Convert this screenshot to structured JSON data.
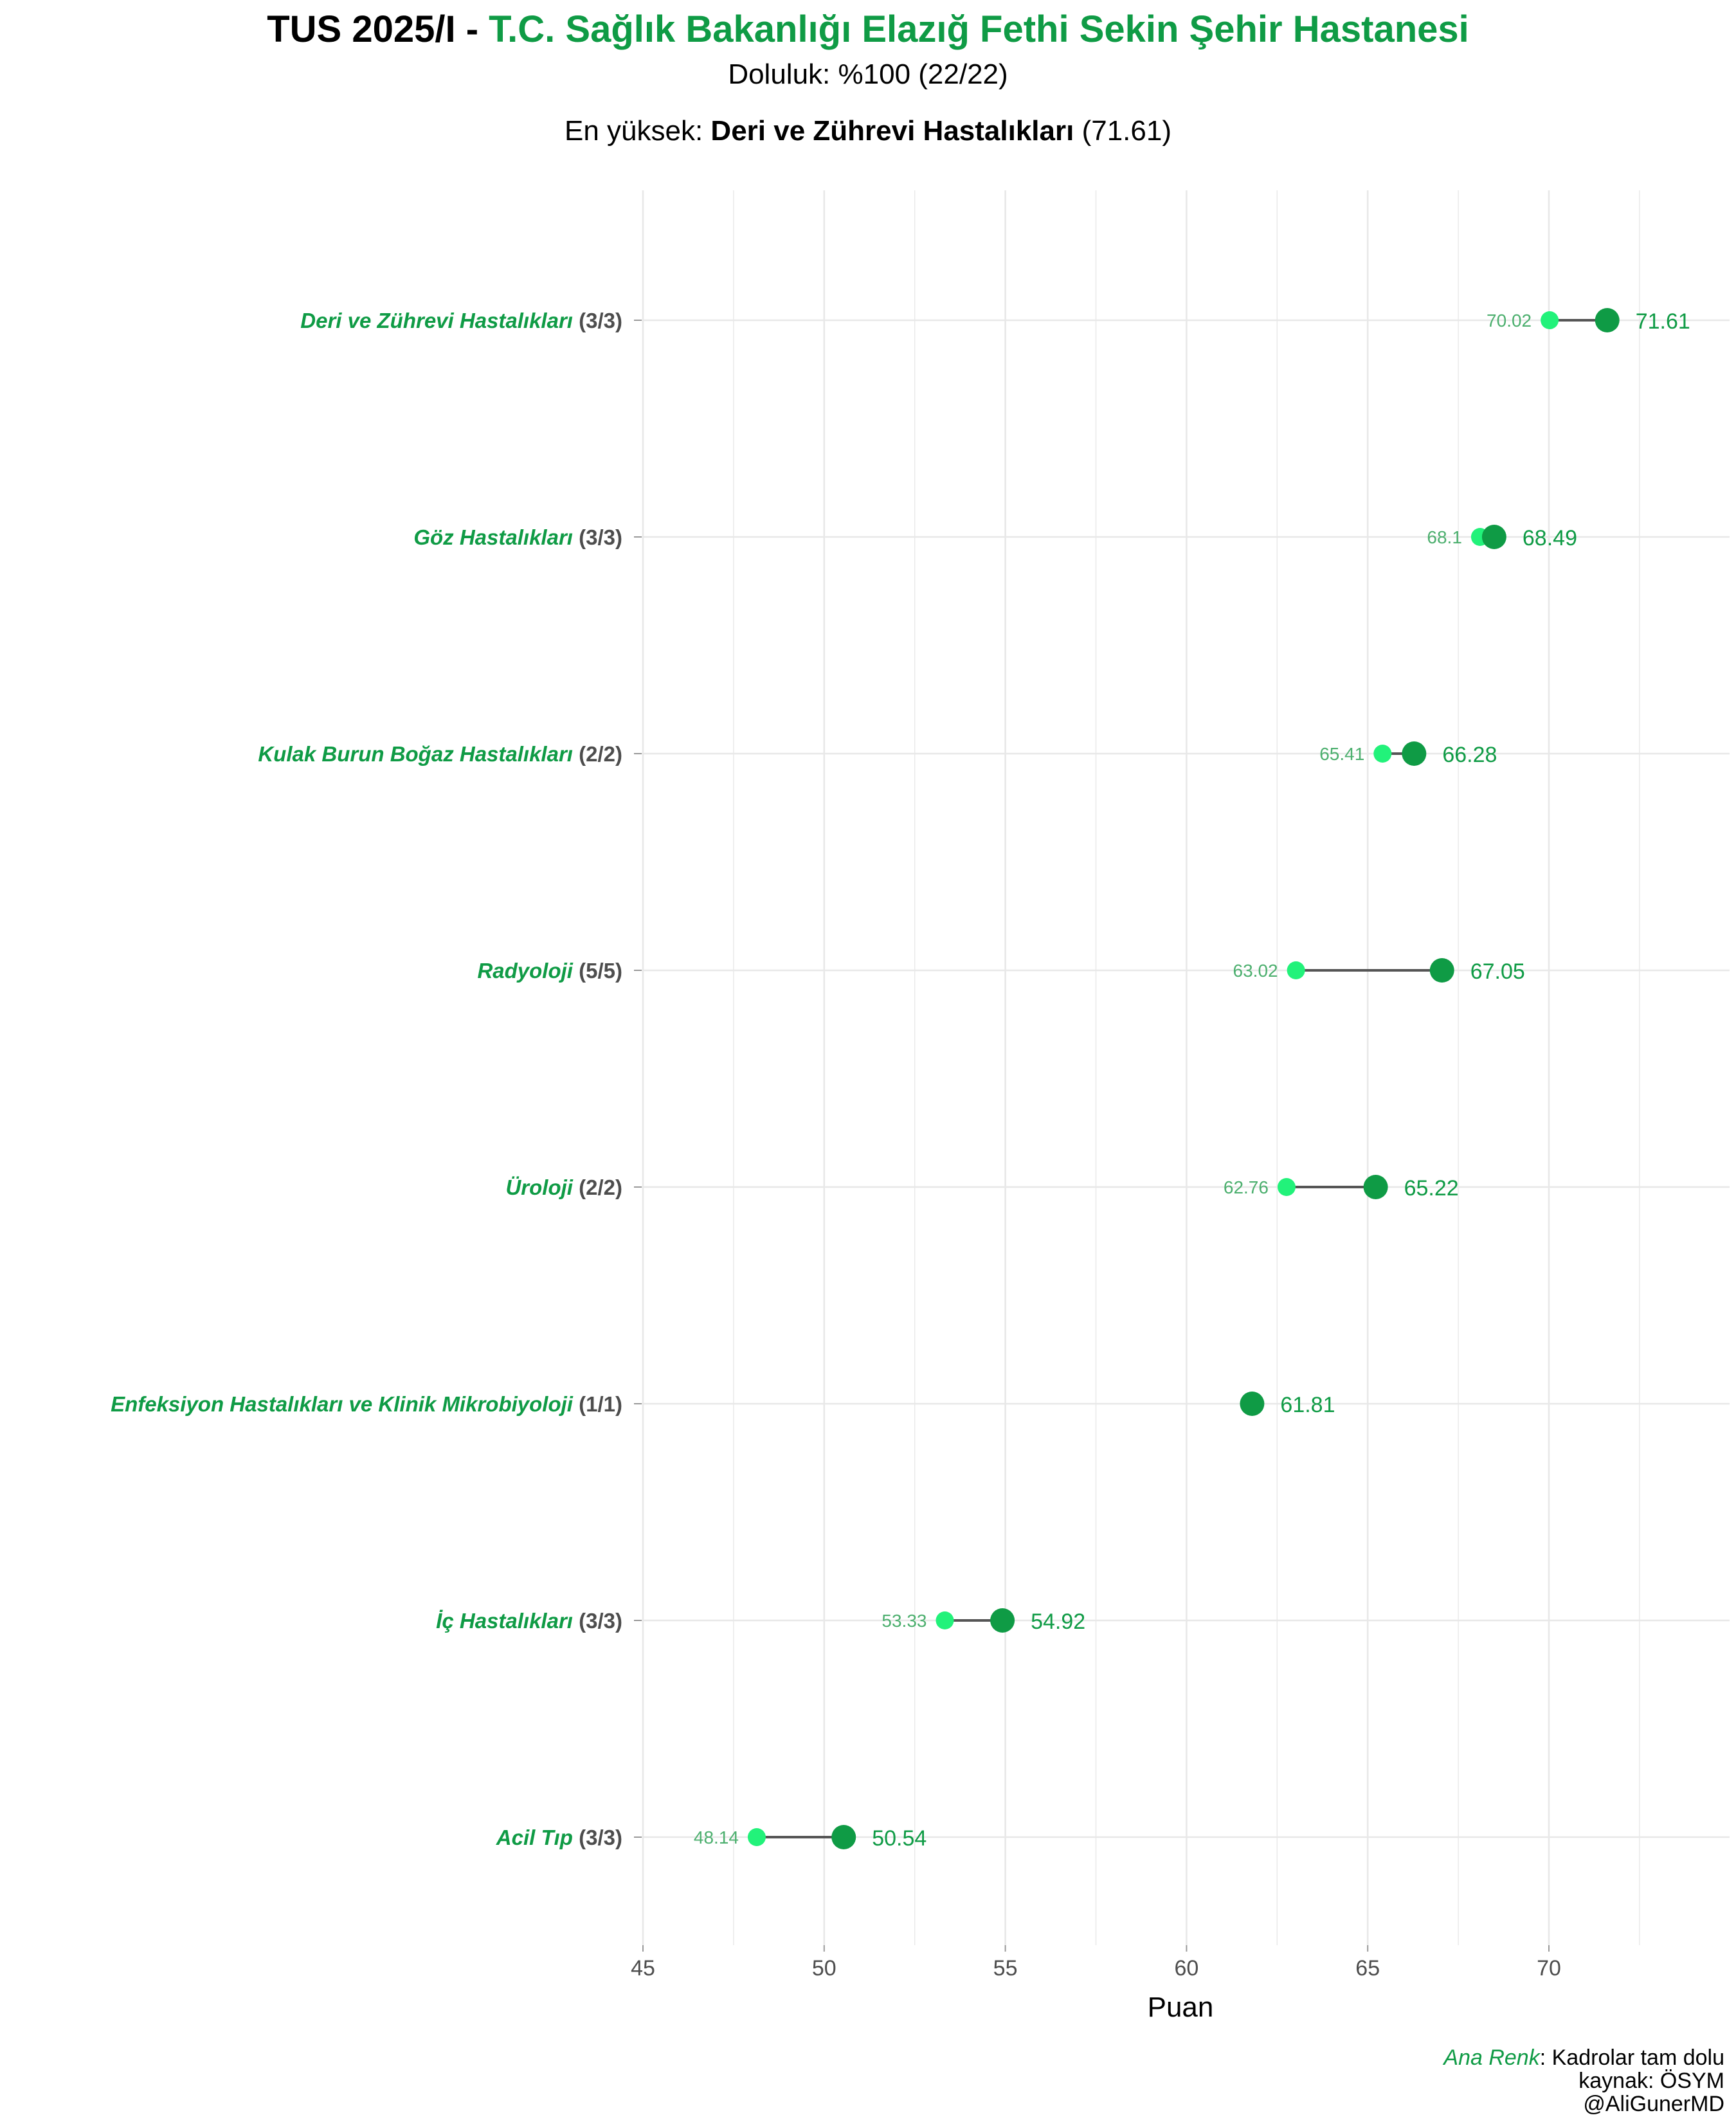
{
  "title": {
    "prefix": "TUS 2025/I - ",
    "hospital": "T.C. Sağlık Bakanlığı Elazığ Fethi Sekin Şehir Hastanesi"
  },
  "subtitle": "Doluluk: %100 (22/22)",
  "highest": {
    "prefix": "En yüksek: ",
    "name": "Deri ve Zührevi Hastalıkları",
    "suffix": " (71.61)"
  },
  "colors": {
    "accent": "#0f9b45",
    "min_point": "#22f27a",
    "min_label": "#4caf6e",
    "segment": "#555555",
    "grid": "#e8e8e8",
    "axis_text": "#4d4d4d"
  },
  "chart_data": {
    "type": "dumbbell",
    "xlabel": "Puan",
    "xlim": [
      45,
      74.5
    ],
    "xticks": [
      45,
      50,
      55,
      60,
      65,
      70
    ],
    "grid": true,
    "rows": [
      {
        "name": "Deri ve Zührevi Hastalıkları",
        "quota": "(3/3)",
        "min": 70.02,
        "max": 71.61,
        "min_label": "70.02",
        "max_label": "71.61"
      },
      {
        "name": "Göz Hastalıkları",
        "quota": "(3/3)",
        "min": 68.1,
        "max": 68.49,
        "min_label": "68.1",
        "max_label": "68.49"
      },
      {
        "name": "Kulak Burun Boğaz Hastalıkları",
        "quota": "(2/2)",
        "min": 65.41,
        "max": 66.28,
        "min_label": "65.41",
        "max_label": "66.28"
      },
      {
        "name": "Radyoloji",
        "quota": "(5/5)",
        "min": 63.02,
        "max": 67.05,
        "min_label": "63.02",
        "max_label": "67.05"
      },
      {
        "name": "Üroloji",
        "quota": "(2/2)",
        "min": 62.76,
        "max": 65.22,
        "min_label": "62.76",
        "max_label": "65.22"
      },
      {
        "name": "Enfeksiyon Hastalıkları ve Klinik Mikrobiyoloji",
        "quota": "(1/1)",
        "min": null,
        "max": 61.81,
        "min_label": "",
        "max_label": "61.81"
      },
      {
        "name": "İç Hastalıkları",
        "quota": "(3/3)",
        "min": 53.33,
        "max": 54.92,
        "min_label": "53.33",
        "max_label": "54.92"
      },
      {
        "name": "Acil Tıp",
        "quota": "(3/3)",
        "min": 48.14,
        "max": 50.54,
        "min_label": "48.14",
        "max_label": "50.54"
      }
    ]
  },
  "caption": {
    "legend_key": "Ana Renk",
    "legend_text": ": Kadrolar tam dolu",
    "source": "kaynak: ÖSYM",
    "author": "@AliGunerMD"
  }
}
